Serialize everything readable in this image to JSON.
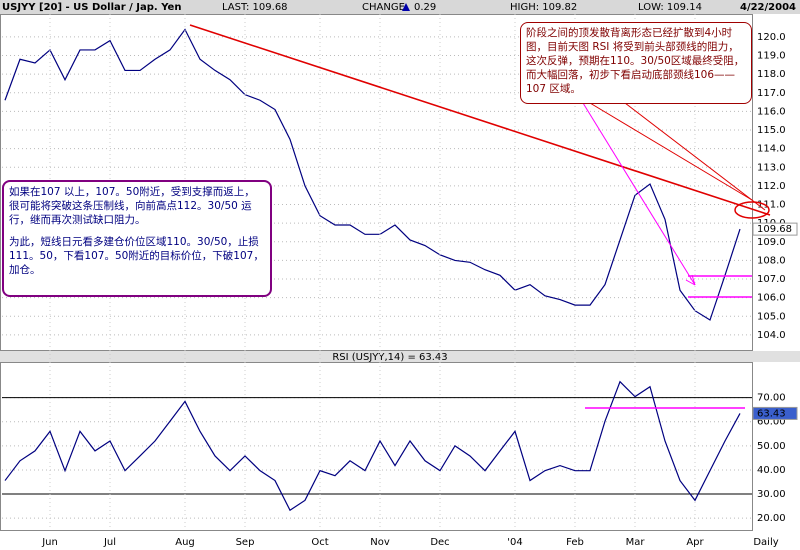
{
  "header": {
    "title": "USJYY [20] - US Dollar / Jap. Yen",
    "last": "LAST: 109.68",
    "change_label": "CHANGE:",
    "change": "0.29",
    "high": "HIGH: 109.82",
    "low": "LOW: 109.14",
    "date": "4/22/2004"
  },
  "annotations": {
    "left": [
      "如果在107 以上，107。50附近，受到支撑而返上，很可能将突破这条压制线，向前高点112。30/50 运行，继而再次测试缺口阻力。",
      "为此，短线日元看多建仓价位区域110。30/50，止损 111。50，下看107。50附近的目标价位，下破107，加仓。"
    ],
    "right": "阶段之间的顶发散背离形态已经扩散到4小时图，目前天图 RSI 将受到前头部颈线的阻力，这次反弹，预期在110。30/50区域最终受阻，而大幅回落，初步下看启动底部颈线106——107 区域。"
  },
  "chart_data": [
    {
      "type": "line",
      "color": "#000080",
      "grid": true,
      "values": [
        116.6,
        118.8,
        118.6,
        119.3,
        117.7,
        119.3,
        119.3,
        119.8,
        118.2,
        118.2,
        118.8,
        119.3,
        120.4,
        118.8,
        118.2,
        117.7,
        116.9,
        116.6,
        116.1,
        114.5,
        112.0,
        110.4,
        109.9,
        109.9,
        109.4,
        109.4,
        109.9,
        109.1,
        108.8,
        108.3,
        108.0,
        107.9,
        107.5,
        107.2,
        106.4,
        106.7,
        106.1,
        105.9,
        105.6,
        105.6,
        106.7,
        109.1,
        111.5,
        112.1,
        110.2,
        106.4,
        105.3,
        104.8,
        107.2,
        109.68
      ],
      "ylim": [
        103.19,
        121.23
      ],
      "yticks": [
        {
          "value": 104,
          "label": "104.0"
        },
        {
          "value": 105,
          "label": "105.0"
        },
        {
          "value": 106,
          "label": "106.0"
        },
        {
          "value": 107,
          "label": "107.0"
        },
        {
          "value": 108,
          "label": "108.0"
        },
        {
          "value": 109,
          "label": "109.0"
        },
        {
          "value": 110,
          "label": "110.0"
        },
        {
          "value": 111,
          "label": "111.0"
        },
        {
          "value": 112,
          "label": "112.0"
        },
        {
          "value": 113,
          "label": "113.0"
        },
        {
          "value": 114,
          "label": "114.0"
        },
        {
          "value": 115,
          "label": "115.0"
        },
        {
          "value": 116,
          "label": "116.0"
        },
        {
          "value": 117,
          "label": "117.0"
        },
        {
          "value": 118,
          "label": "118.0"
        },
        {
          "value": 119,
          "label": "119.0"
        },
        {
          "value": 120,
          "label": "120.0"
        }
      ]
    },
    {
      "type": "line",
      "title": "RSI (USJYY,14) = 63.43",
      "color": "#000080",
      "grid": true,
      "levels": [
        70,
        30
      ],
      "interval": "Daily",
      "categories": [
        null,
        null,
        null,
        "Jun",
        null,
        null,
        null,
        "Jul",
        null,
        null,
        null,
        null,
        "Aug",
        null,
        null,
        null,
        "Sep",
        null,
        null,
        null,
        null,
        "Oct",
        null,
        null,
        null,
        "Nov",
        null,
        null,
        null,
        "Dec",
        null,
        null,
        null,
        null,
        "'04",
        null,
        null,
        null,
        "Feb",
        null,
        null,
        null,
        "Mar",
        null,
        null,
        null,
        "Apr",
        null,
        null,
        null
      ],
      "values": [
        35.6,
        43.8,
        47.9,
        56,
        39.7,
        56,
        47.9,
        52,
        39.7,
        45.8,
        52,
        60.2,
        68.4,
        56,
        45.8,
        39.7,
        45.8,
        39.7,
        35.6,
        23.3,
        27.4,
        39.7,
        37.6,
        43.8,
        39.7,
        52,
        41.8,
        52,
        43.8,
        39.7,
        50,
        45.8,
        39.7,
        47.9,
        56,
        35.6,
        39.7,
        41.8,
        39.7,
        39.7,
        60.2,
        76.6,
        70.4,
        74.5,
        52,
        35.6,
        27.4,
        39.7,
        52,
        63.43
      ],
      "ylim": [
        15.1,
        84.75
      ],
      "yticks": [
        {
          "value": 20,
          "label": "20.00"
        },
        {
          "value": 30,
          "label": "30.00"
        },
        {
          "value": 40,
          "label": "40.00"
        },
        {
          "value": 50,
          "label": "50.00"
        },
        {
          "value": 60,
          "label": "60.00"
        },
        {
          "value": 70,
          "label": "70.00"
        }
      ]
    }
  ]
}
